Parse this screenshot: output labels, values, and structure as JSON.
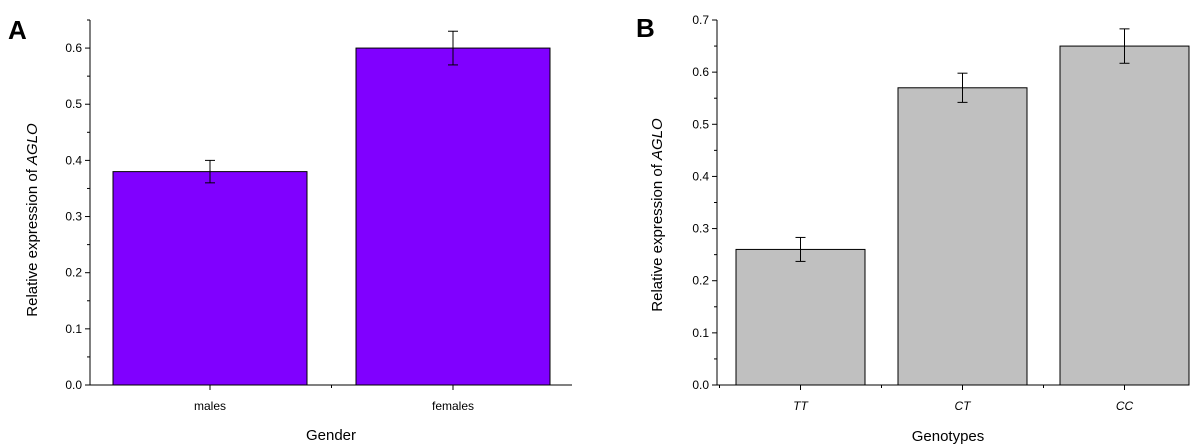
{
  "chart_data": [
    {
      "panel": "A",
      "type": "bar",
      "categories": [
        "males",
        "females"
      ],
      "category_italic": false,
      "values": [
        0.38,
        0.6
      ],
      "errors": [
        0.02,
        0.03
      ],
      "xlabel": "Gender",
      "ylabel_prefix": "Relative expression of ",
      "ylabel_gene": "AGLO",
      "ylim": [
        0,
        0.65
      ],
      "yticks": [
        "0.0",
        "0.1",
        "0.2",
        "0.3",
        "0.4",
        "0.5",
        "0.6"
      ],
      "bar_color": "#8000ff",
      "grid": false
    },
    {
      "panel": "B",
      "type": "bar",
      "categories": [
        "TT",
        "CT",
        "CC"
      ],
      "category_italic": true,
      "values": [
        0.26,
        0.57,
        0.65
      ],
      "errors": [
        0.023,
        0.028,
        0.033
      ],
      "xlabel": "Genotypes",
      "ylabel_prefix": "Relative expression of ",
      "ylabel_gene": "AGLO",
      "ylim": [
        0,
        0.7
      ],
      "yticks": [
        "0.0",
        "0.1",
        "0.2",
        "0.3",
        "0.4",
        "0.5",
        "0.6",
        "0.7"
      ],
      "bar_color": "#c0c0c0",
      "grid": false
    }
  ]
}
